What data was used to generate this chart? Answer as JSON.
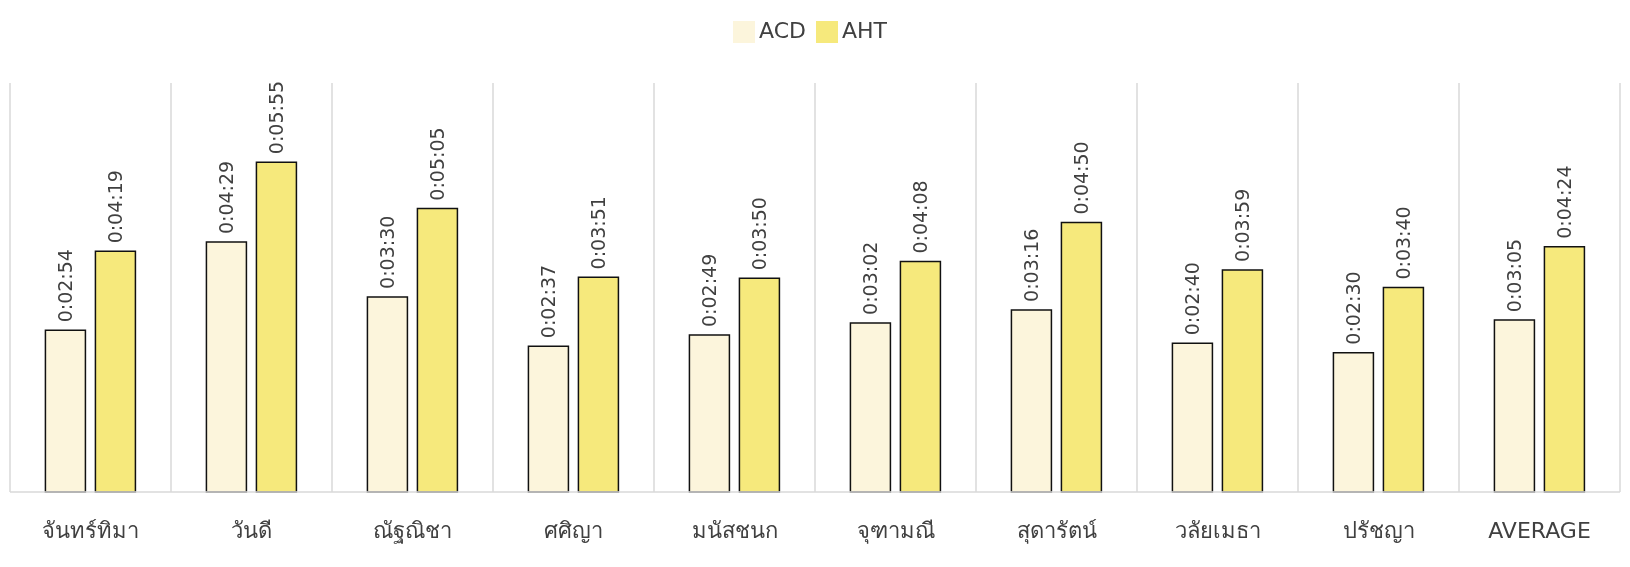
{
  "chart_data": {
    "type": "bar",
    "categories": [
      "จันทร์ทิมา",
      "วันดี",
      "ณัฐณิชา",
      "ศศิญา",
      "มนัสชนก",
      "จุฑามณี",
      "สุดารัตน์",
      "วลัยเมธา",
      "ปรัชญา",
      "AVERAGE"
    ],
    "series": [
      {
        "name": "ACD",
        "color": "#fcf5dc",
        "values": [
          174,
          269,
          210,
          157,
          169,
          182,
          196,
          160,
          150,
          185
        ],
        "value_labels": [
          "0:02:54",
          "0:04:29",
          "0:03:30",
          "0:02:37",
          "0:02:49",
          "0:03:02",
          "0:03:16",
          "0:02:40",
          "0:02:30",
          "0:03:05"
        ]
      },
      {
        "name": "AHT",
        "color": "#f6e97c",
        "values": [
          259,
          355,
          305,
          231,
          230,
          248,
          290,
          239,
          220,
          264
        ],
        "value_labels": [
          "0:04:19",
          "0:05:55",
          "0:05:05",
          "0:03:51",
          "0:03:50",
          "0:04:08",
          "0:04:50",
          "0:03:59",
          "0:03:40",
          "0:04:24"
        ]
      }
    ],
    "grid": "x",
    "legend": "top"
  }
}
